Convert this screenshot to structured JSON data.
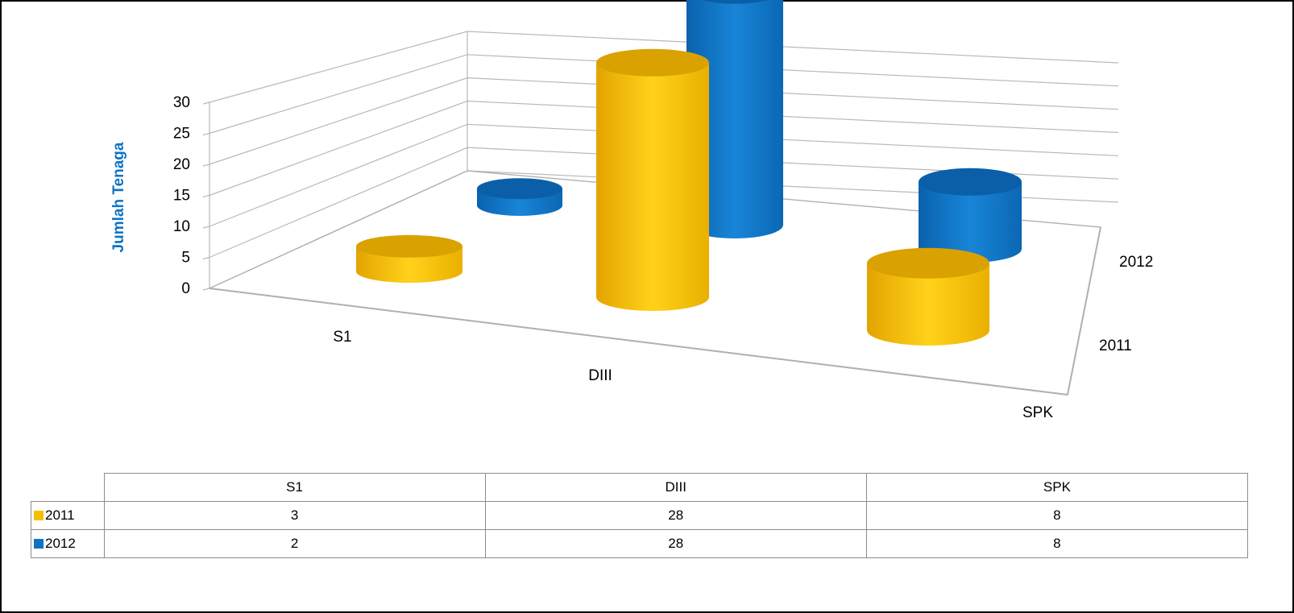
{
  "chart_data": {
    "type": "bar",
    "subtype": "3d-cylinder",
    "ylabel": "Jumlah Tenaga",
    "ylim": [
      0,
      30
    ],
    "yticks": [
      "0",
      "5",
      "10",
      "15",
      "20",
      "25",
      "30"
    ],
    "categories": [
      "S1",
      "DIII",
      "SPK"
    ],
    "series": [
      {
        "name": "2011",
        "values": [
          3,
          28,
          8
        ],
        "color": "#f5c000"
      },
      {
        "name": "2012",
        "values": [
          2,
          28,
          8
        ],
        "color": "#0f73c2"
      }
    ],
    "depth_labels": [
      "2012",
      "2011"
    ],
    "grid": true,
    "legend": "data-table"
  }
}
